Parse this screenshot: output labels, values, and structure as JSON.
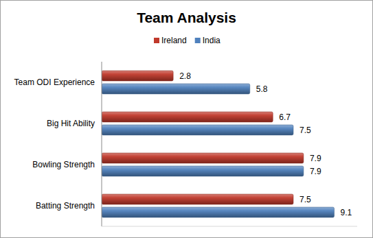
{
  "chart_data": {
    "type": "bar",
    "title": "Team Analysis",
    "orientation": "horizontal",
    "categories": [
      "Team ODI Experience",
      "Big Hit Ability",
      "Bowling Strength",
      "Batting Strength"
    ],
    "series": [
      {
        "name": "Ireland",
        "color": "#c0392b",
        "values": [
          2.8,
          6.7,
          7.9,
          7.5
        ]
      },
      {
        "name": "India",
        "color": "#4f81bd",
        "values": [
          5.8,
          7.5,
          7.9,
          9.1
        ]
      }
    ],
    "xlim": [
      0,
      10
    ],
    "tick_labels": false,
    "data_labels": true,
    "legend": "top",
    "grid": false
  }
}
